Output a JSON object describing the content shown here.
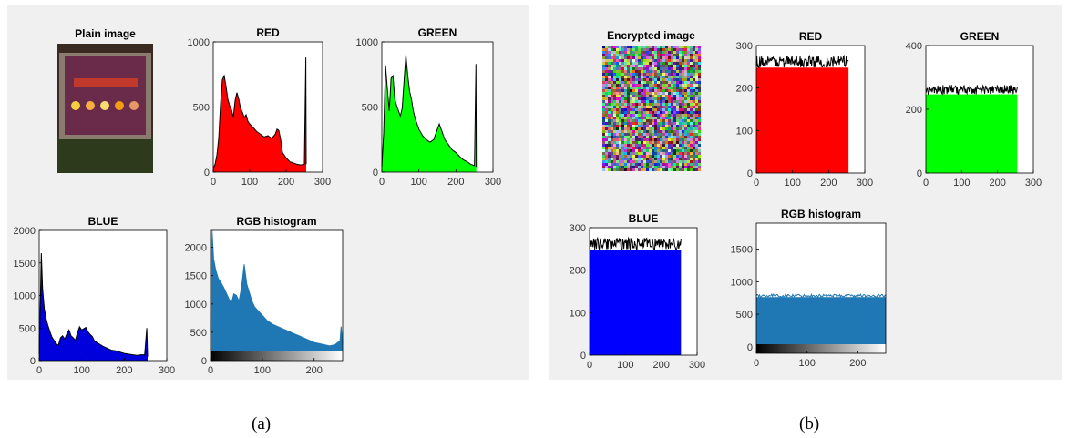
{
  "captions": [
    "(a)",
    "(b)"
  ],
  "panels": [
    {
      "caption": "(a)",
      "image_title": "Plain image",
      "chart_data": [
        {
          "type": "area",
          "title": "RED",
          "color": "#ff0000",
          "xlim": [
            0,
            300
          ],
          "ylim": [
            0,
            1000
          ],
          "xticks": [
            0,
            100,
            200,
            300
          ],
          "yticks": [
            0,
            500,
            1000
          ],
          "x": [
            0,
            5,
            10,
            15,
            20,
            25,
            30,
            35,
            40,
            45,
            50,
            55,
            60,
            65,
            70,
            75,
            80,
            85,
            90,
            95,
            100,
            110,
            120,
            130,
            140,
            150,
            160,
            170,
            175,
            180,
            185,
            190,
            200,
            210,
            220,
            230,
            240,
            250,
            254,
            255
          ],
          "values": [
            30,
            60,
            130,
            260,
            520,
            710,
            740,
            660,
            560,
            510,
            480,
            420,
            550,
            610,
            560,
            490,
            460,
            420,
            440,
            390,
            370,
            340,
            310,
            290,
            270,
            280,
            260,
            290,
            330,
            320,
            250,
            150,
            110,
            80,
            70,
            60,
            55,
            60,
            880,
            60
          ]
        },
        {
          "type": "area",
          "title": "GREEN",
          "color": "#00ff00",
          "xlim": [
            0,
            300
          ],
          "ylim": [
            0,
            1000
          ],
          "xticks": [
            0,
            100,
            200,
            300
          ],
          "yticks": [
            0,
            500,
            1000
          ],
          "x": [
            0,
            5,
            10,
            15,
            20,
            25,
            30,
            35,
            40,
            45,
            50,
            55,
            60,
            65,
            70,
            75,
            80,
            85,
            90,
            95,
            100,
            110,
            120,
            130,
            140,
            150,
            155,
            160,
            170,
            180,
            190,
            200,
            210,
            220,
            230,
            240,
            250,
            254,
            255
          ],
          "values": [
            40,
            300,
            820,
            640,
            470,
            720,
            740,
            560,
            510,
            470,
            430,
            490,
            700,
            900,
            740,
            620,
            560,
            470,
            410,
            370,
            330,
            280,
            250,
            230,
            250,
            330,
            370,
            330,
            250,
            210,
            170,
            150,
            120,
            95,
            80,
            60,
            50,
            830,
            40
          ]
        },
        {
          "type": "area",
          "title": "BLUE",
          "color": "#0000dd",
          "xlim": [
            0,
            300
          ],
          "ylim": [
            0,
            2000
          ],
          "xticks": [
            0,
            100,
            200,
            300
          ],
          "yticks": [
            0,
            500,
            1000,
            1500,
            2000
          ],
          "x": [
            0,
            2,
            5,
            8,
            12,
            16,
            20,
            25,
            30,
            35,
            40,
            45,
            50,
            55,
            60,
            65,
            70,
            75,
            80,
            85,
            90,
            95,
            100,
            105,
            110,
            115,
            120,
            125,
            130,
            140,
            150,
            160,
            170,
            180,
            190,
            200,
            210,
            220,
            230,
            240,
            248,
            250,
            253,
            255
          ],
          "values": [
            100,
            700,
            1650,
            1100,
            800,
            650,
            550,
            450,
            360,
            310,
            260,
            230,
            350,
            380,
            330,
            410,
            470,
            380,
            350,
            310,
            430,
            520,
            470,
            490,
            510,
            440,
            400,
            370,
            300,
            260,
            220,
            190,
            160,
            150,
            130,
            110,
            100,
            90,
            80,
            90,
            90,
            250,
            500,
            60
          ]
        },
        {
          "type": "area",
          "title": "RGB histogram",
          "color": "#1f77b4",
          "xlim": [
            0,
            255
          ],
          "ylim": [
            0,
            2300
          ],
          "xticks": [
            0,
            100,
            200
          ],
          "yticks": [
            0,
            500,
            1000,
            1500,
            2000
          ],
          "gradient_bar": true,
          "x": [
            0,
            3,
            6,
            10,
            15,
            20,
            25,
            30,
            35,
            40,
            45,
            50,
            55,
            60,
            65,
            70,
            75,
            80,
            85,
            90,
            95,
            100,
            110,
            120,
            130,
            140,
            150,
            160,
            170,
            180,
            190,
            200,
            210,
            220,
            230,
            240,
            250,
            252,
            255
          ],
          "values": [
            500,
            2300,
            1800,
            1600,
            1450,
            1380,
            1300,
            1200,
            1100,
            1000,
            1180,
            1150,
            1050,
            1300,
            1700,
            1350,
            1200,
            1050,
            950,
            900,
            850,
            800,
            700,
            640,
            600,
            560,
            520,
            480,
            440,
            400,
            360,
            320,
            300,
            280,
            260,
            280,
            350,
            600,
            300
          ]
        }
      ]
    },
    {
      "caption": "(b)",
      "image_title": "Encrypted image",
      "chart_data": [
        {
          "type": "bar",
          "title": "RED",
          "color": "#ff0000",
          "xlim": [
            0,
            300
          ],
          "ylim": [
            0,
            300
          ],
          "xticks": [
            0,
            100,
            200,
            300
          ],
          "yticks": [
            0,
            100,
            200,
            300
          ],
          "x_range": [
            0,
            255
          ],
          "mean": 262,
          "amplitude": 14
        },
        {
          "type": "bar",
          "title": "GREEN",
          "color": "#00ff00",
          "xlim": [
            0,
            300
          ],
          "ylim": [
            0,
            400
          ],
          "xticks": [
            0,
            100,
            200,
            300
          ],
          "yticks": [
            0,
            200,
            400
          ],
          "x_range": [
            0,
            255
          ],
          "mean": 262,
          "amplitude": 15
        },
        {
          "type": "bar",
          "title": "BLUE",
          "color": "#0000ff",
          "xlim": [
            0,
            300
          ],
          "ylim": [
            0,
            300
          ],
          "xticks": [
            0,
            100,
            200,
            300
          ],
          "yticks": [
            0,
            100,
            200,
            300
          ],
          "x_range": [
            0,
            255
          ],
          "mean": 262,
          "amplitude": 14
        },
        {
          "type": "bar",
          "title": "RGB histogram",
          "color": "#1f77b4",
          "xlim": [
            0,
            255
          ],
          "ylim": [
            -100,
            1900
          ],
          "xticks": [
            0,
            100,
            200
          ],
          "yticks": [
            0,
            500,
            1000,
            1500
          ],
          "x_range": [
            0,
            255
          ],
          "gradient_bar": true,
          "mean": 786,
          "amplitude": 22
        }
      ]
    }
  ]
}
